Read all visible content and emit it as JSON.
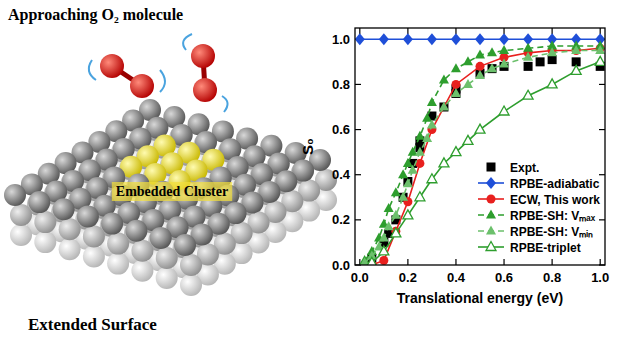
{
  "illustration": {
    "title": "Approaching O₂ molecule",
    "cluster_label": "Embedded Cluster",
    "surface_label": "Extended Surface"
  },
  "chart_data": {
    "type": "scatter",
    "x_label": "Translational energy (eV)",
    "y_label": "S₀",
    "xlim": [
      -0.02,
      1.02
    ],
    "ylim": [
      0,
      1.05
    ],
    "xticks": [
      {
        "value": 0,
        "label": "0.0"
      },
      0.2,
      0.4,
      0.6,
      0.8,
      {
        "value": 1,
        "label": "1.0"
      }
    ],
    "yticks": [
      {
        "value": 0,
        "label": "0.0"
      },
      0.2,
      0.4,
      0.6,
      0.8,
      {
        "value": 1,
        "label": "1.0"
      }
    ],
    "grid": false,
    "legend": "lower right",
    "series": [
      {
        "name": "Expt.",
        "color": "#000000",
        "marker": "square",
        "line_style": "none",
        "x": [
          0.05,
          0.1,
          0.12,
          0.15,
          0.18,
          0.2,
          0.22,
          0.25,
          0.25,
          0.3,
          0.35,
          0.4,
          0.4,
          0.5,
          0.55,
          0.6,
          0.7,
          0.75,
          0.8,
          0.9,
          1.0
        ],
        "values": [
          0.03,
          0.1,
          0.14,
          0.2,
          0.3,
          0.37,
          0.45,
          0.55,
          0.52,
          0.66,
          0.7,
          0.76,
          0.78,
          0.85,
          0.87,
          0.88,
          0.88,
          0.9,
          0.91,
          0.9,
          0.88
        ]
      },
      {
        "name": "RPBE-adiabatic",
        "color": "#1f4fd8",
        "marker": "diamond",
        "line_style": "solid",
        "x": [
          0,
          0.1,
          0.2,
          0.3,
          0.4,
          0.5,
          0.6,
          0.7,
          0.8,
          0.9,
          1.0
        ],
        "values": [
          1,
          1,
          1,
          1,
          1,
          1,
          1,
          1,
          1,
          1,
          1
        ]
      },
      {
        "name": "ECW, This work",
        "color": "#e8201e",
        "marker": "circle",
        "line_style": "solid",
        "x": [
          0.05,
          0.1,
          0.15,
          0.2,
          0.25,
          0.3,
          0.4,
          0.5,
          0.6,
          0.7,
          0.8,
          0.9,
          1.0
        ],
        "values": [
          0.0,
          0.02,
          0.15,
          0.28,
          0.45,
          0.6,
          0.8,
          0.88,
          0.92,
          0.94,
          0.95,
          0.95,
          0.96
        ]
      },
      {
        "name": "RPBE-SH: Vₘₐₓ",
        "color": "#2e9e2e",
        "marker": "triangle",
        "line_style": "dashed",
        "x": [
          0.02,
          0.05,
          0.08,
          0.1,
          0.12,
          0.15,
          0.18,
          0.2,
          0.22,
          0.25,
          0.28,
          0.3,
          0.35,
          0.4,
          0.45,
          0.5,
          0.55,
          0.6,
          0.7,
          0.8,
          0.9,
          1.0
        ],
        "values": [
          0.02,
          0.06,
          0.12,
          0.18,
          0.25,
          0.32,
          0.4,
          0.45,
          0.5,
          0.57,
          0.65,
          0.72,
          0.82,
          0.87,
          0.9,
          0.93,
          0.94,
          0.95,
          0.96,
          0.97,
          0.97,
          0.97
        ]
      },
      {
        "name": "RPBE-SH: Vₘᵢₙ",
        "color": "#6cc06c",
        "marker": "triangle",
        "line_style": "dashed",
        "x": [
          0.02,
          0.05,
          0.08,
          0.1,
          0.12,
          0.15,
          0.18,
          0.2,
          0.22,
          0.25,
          0.28,
          0.3,
          0.35,
          0.4,
          0.45,
          0.5,
          0.55,
          0.6,
          0.7,
          0.8,
          0.9,
          1.0
        ],
        "values": [
          0.01,
          0.04,
          0.08,
          0.12,
          0.17,
          0.22,
          0.3,
          0.36,
          0.42,
          0.5,
          0.56,
          0.62,
          0.7,
          0.76,
          0.8,
          0.84,
          0.87,
          0.89,
          0.92,
          0.94,
          0.95,
          0.95
        ]
      },
      {
        "name": "RPBE-triplet",
        "color": "#2e9e2e",
        "marker": "triangle-open",
        "line_style": "solid",
        "x": [
          0.05,
          0.1,
          0.15,
          0.2,
          0.25,
          0.3,
          0.35,
          0.4,
          0.45,
          0.5,
          0.6,
          0.7,
          0.8,
          0.9,
          1.0
        ],
        "values": [
          0.01,
          0.06,
          0.14,
          0.22,
          0.3,
          0.38,
          0.45,
          0.5,
          0.55,
          0.6,
          0.68,
          0.75,
          0.8,
          0.86,
          0.9
        ]
      }
    ]
  }
}
